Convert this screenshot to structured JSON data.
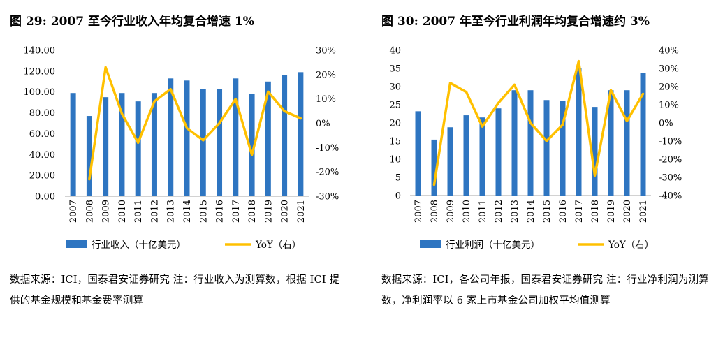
{
  "colors": {
    "bar": "#2E75C1",
    "line": "#FFC000",
    "axis": "#A6A6A6"
  },
  "charts": [
    {
      "title": "图 29: 2007 至今行业收入年均复合增速 1%",
      "source": "数据来源：ICI，国泰君安证券研究 注：行业收入为测算数，根据 ICI 提供的基金规模和基金费率测算"
    },
    {
      "title": "图 30: 2007 年至今行业利润年均复合增速约 3%",
      "source": "数据来源：ICI，各公司年报，国泰君安证券研究 注：行业净利润为测算数，净利润率以 6 家上市基金公司加权平均值测算"
    }
  ],
  "chart_data": [
    {
      "type": "bar+line",
      "categories": [
        "2007",
        "2008",
        "2009",
        "2010",
        "2011",
        "2012",
        "2013",
        "2014",
        "2015",
        "2016",
        "2017",
        "2018",
        "2019",
        "2020",
        "2021"
      ],
      "series": [
        {
          "name": "行业收入（十亿美元）",
          "type": "bar",
          "axis": "left",
          "values": [
            99,
            77,
            95,
            99,
            91,
            99,
            113,
            111,
            103,
            103,
            113,
            98,
            110,
            116,
            119
          ]
        },
        {
          "name": "YoY（右）",
          "type": "line",
          "axis": "right",
          "values": [
            null,
            -23,
            23,
            4,
            -8,
            9,
            14,
            -2,
            -7,
            0,
            10,
            -13,
            13,
            5,
            2
          ]
        }
      ],
      "left_axis": {
        "min": 0,
        "max": 140,
        "step": 20,
        "ticks": [
          "0.00",
          "20.00",
          "40.00",
          "60.00",
          "80.00",
          "100.00",
          "120.00",
          "140.00"
        ]
      },
      "right_axis": {
        "min": -30,
        "max": 30,
        "step": 10,
        "ticks": [
          "-30%",
          "-20%",
          "-10%",
          "0%",
          "10%",
          "20%",
          "30%"
        ]
      },
      "legend": [
        "行业收入（十亿美元）",
        "YoY（右）"
      ],
      "legend_position": "bottom"
    },
    {
      "type": "bar+line",
      "categories": [
        "2007",
        "2008",
        "2009",
        "2010",
        "2011",
        "2012",
        "2013",
        "2014",
        "2015",
        "2016",
        "2017",
        "2018",
        "2019",
        "2020",
        "2021"
      ],
      "series": [
        {
          "name": "行业利润（十亿美元）",
          "type": "bar",
          "axis": "left",
          "values": [
            23.2,
            15.4,
            18.8,
            22.1,
            21.5,
            24.0,
            29.0,
            29.0,
            26.3,
            26.0,
            35.0,
            24.4,
            29.0,
            29.0,
            33.8
          ]
        },
        {
          "name": "YoY（右）",
          "type": "line",
          "axis": "right",
          "values": [
            null,
            -34,
            22,
            17,
            -2,
            11,
            21,
            0,
            -10,
            -1,
            34,
            -29,
            18,
            1,
            16
          ]
        }
      ],
      "left_axis": {
        "min": 0,
        "max": 40,
        "step": 5,
        "ticks": [
          "0",
          "5",
          "10",
          "15",
          "20",
          "25",
          "30",
          "35",
          "40"
        ]
      },
      "right_axis": {
        "min": -40,
        "max": 40,
        "step": 10,
        "ticks": [
          "-40%",
          "-30%",
          "-20%",
          "-10%",
          "0%",
          "10%",
          "20%",
          "30%",
          "40%"
        ]
      },
      "legend": [
        "行业利润（十亿美元）",
        "YoY（右）"
      ],
      "legend_position": "bottom"
    }
  ]
}
